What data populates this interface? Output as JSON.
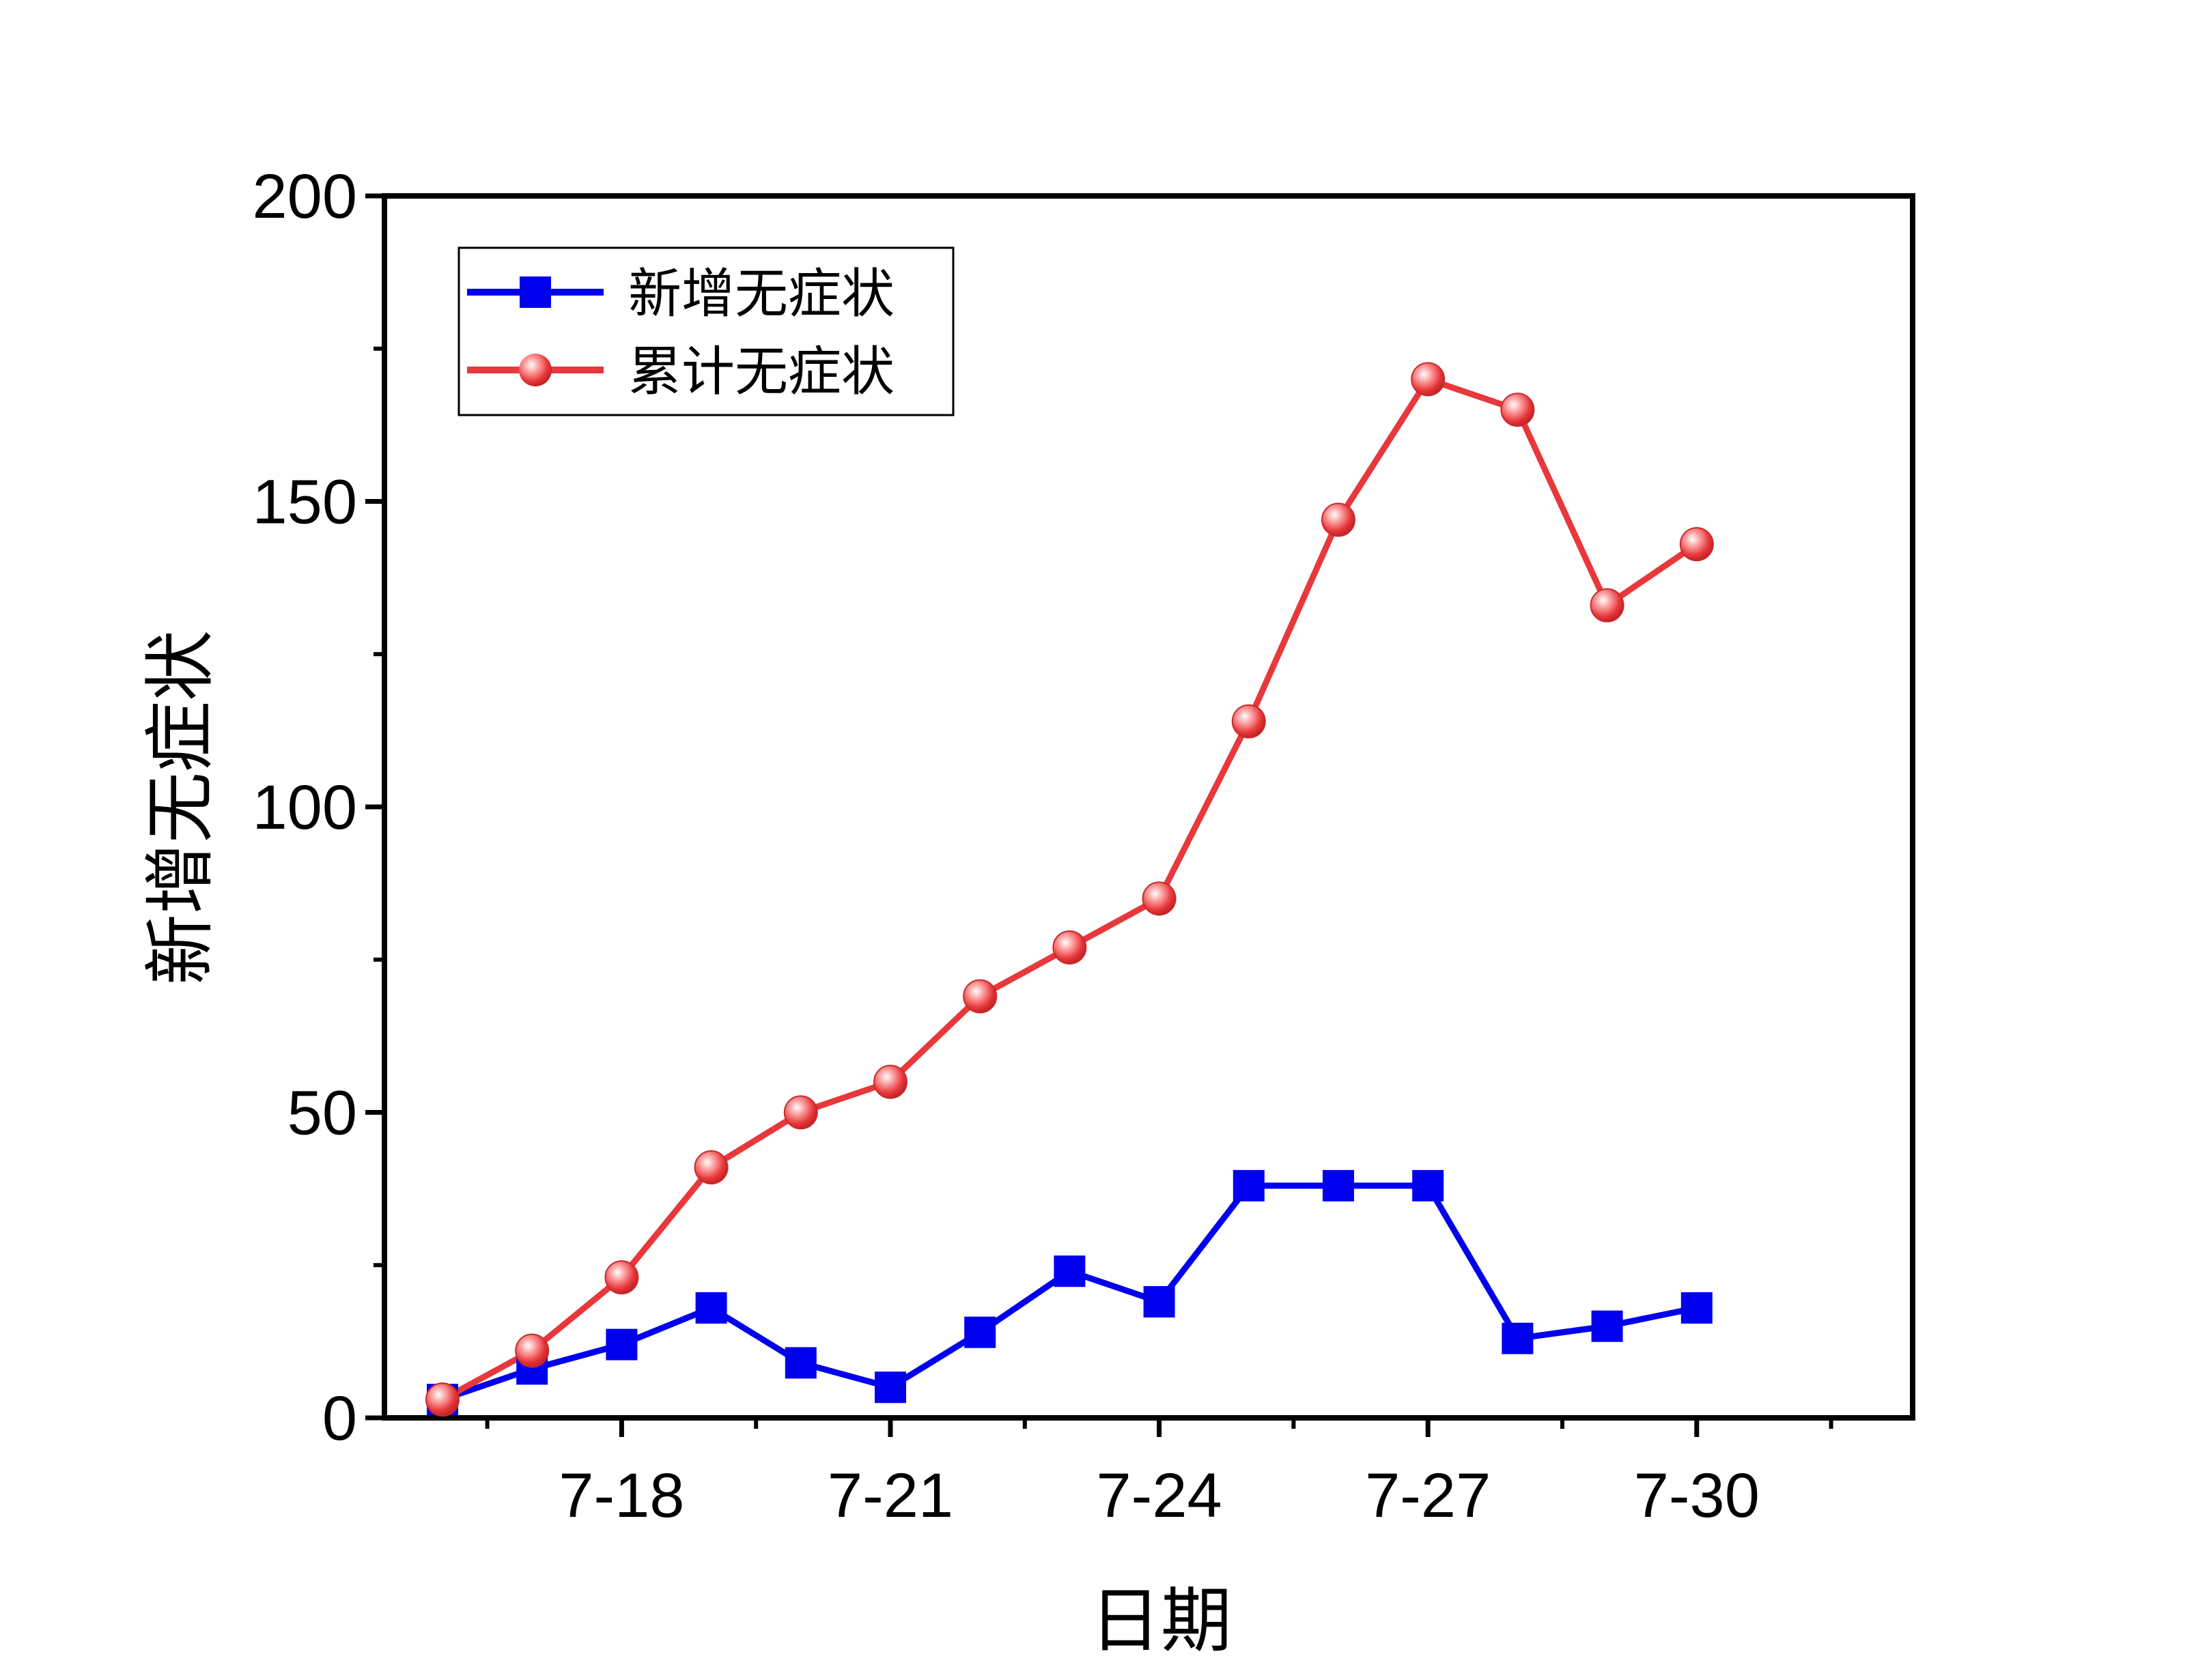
{
  "chart_data": {
    "type": "line",
    "x": [
      "7-16",
      "7-17",
      "7-18",
      "7-19",
      "7-20",
      "7-21",
      "7-22",
      "7-23",
      "7-24",
      "7-25",
      "7-26",
      "7-27",
      "7-28",
      "7-29",
      "7-30"
    ],
    "x_tick_labels": [
      "7-18",
      "7-21",
      "7-24",
      "7-27",
      "7-30"
    ],
    "y_tick_labels": [
      "0",
      "50",
      "100",
      "150",
      "200"
    ],
    "xlabel": "日期",
    "ylabel": "新增无症状",
    "ylim": [
      0,
      200
    ],
    "grid": false,
    "legend_position": "top-left",
    "series": [
      {
        "name": "新增无症状",
        "marker": "square",
        "color": "#0000ee",
        "values": [
          3,
          8,
          12,
          18,
          9,
          5,
          14,
          24,
          19,
          38,
          38,
          38,
          13,
          15,
          18
        ]
      },
      {
        "name": "累计无症状",
        "marker": "circle",
        "color": "#e8383b",
        "values": [
          3,
          11,
          23,
          41,
          50,
          55,
          69,
          77,
          85,
          114,
          147,
          170,
          165,
          133,
          143
        ]
      }
    ]
  }
}
